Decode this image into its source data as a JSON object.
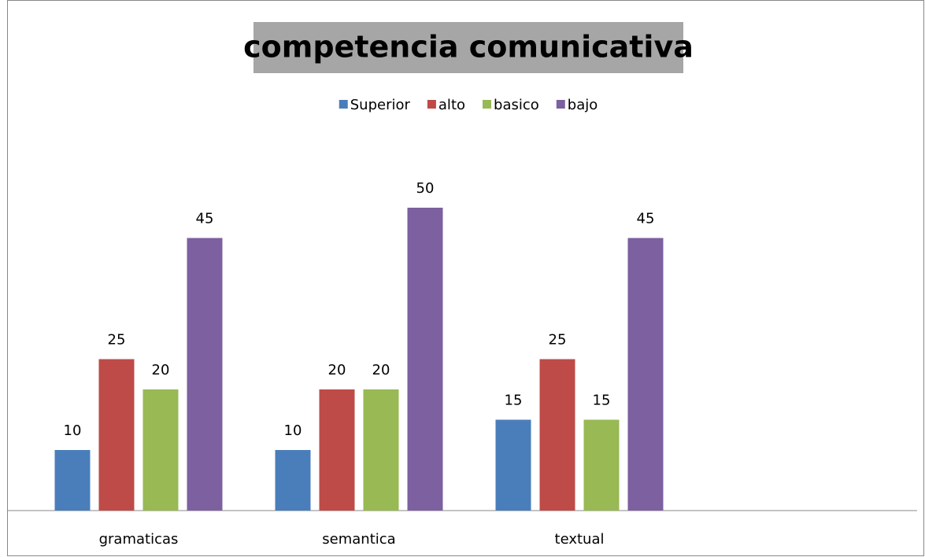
{
  "chart_data": {
    "type": "bar",
    "title": "competencia comunicativa",
    "categories": [
      "gramaticas",
      "semantica",
      "textual",
      null
    ],
    "series": [
      {
        "name": "Superior",
        "color": "#4a7ebb",
        "values": [
          10,
          10,
          15,
          null
        ]
      },
      {
        "name": "alto",
        "color": "#be4b48",
        "values": [
          25,
          20,
          25,
          null
        ]
      },
      {
        "name": "basico",
        "color": "#98b954",
        "values": [
          20,
          20,
          15,
          null
        ]
      },
      {
        "name": "bajo",
        "color": "#7d60a0",
        "values": [
          45,
          50,
          45,
          null
        ]
      }
    ],
    "ylim": [
      0,
      60
    ],
    "legend": "top"
  }
}
